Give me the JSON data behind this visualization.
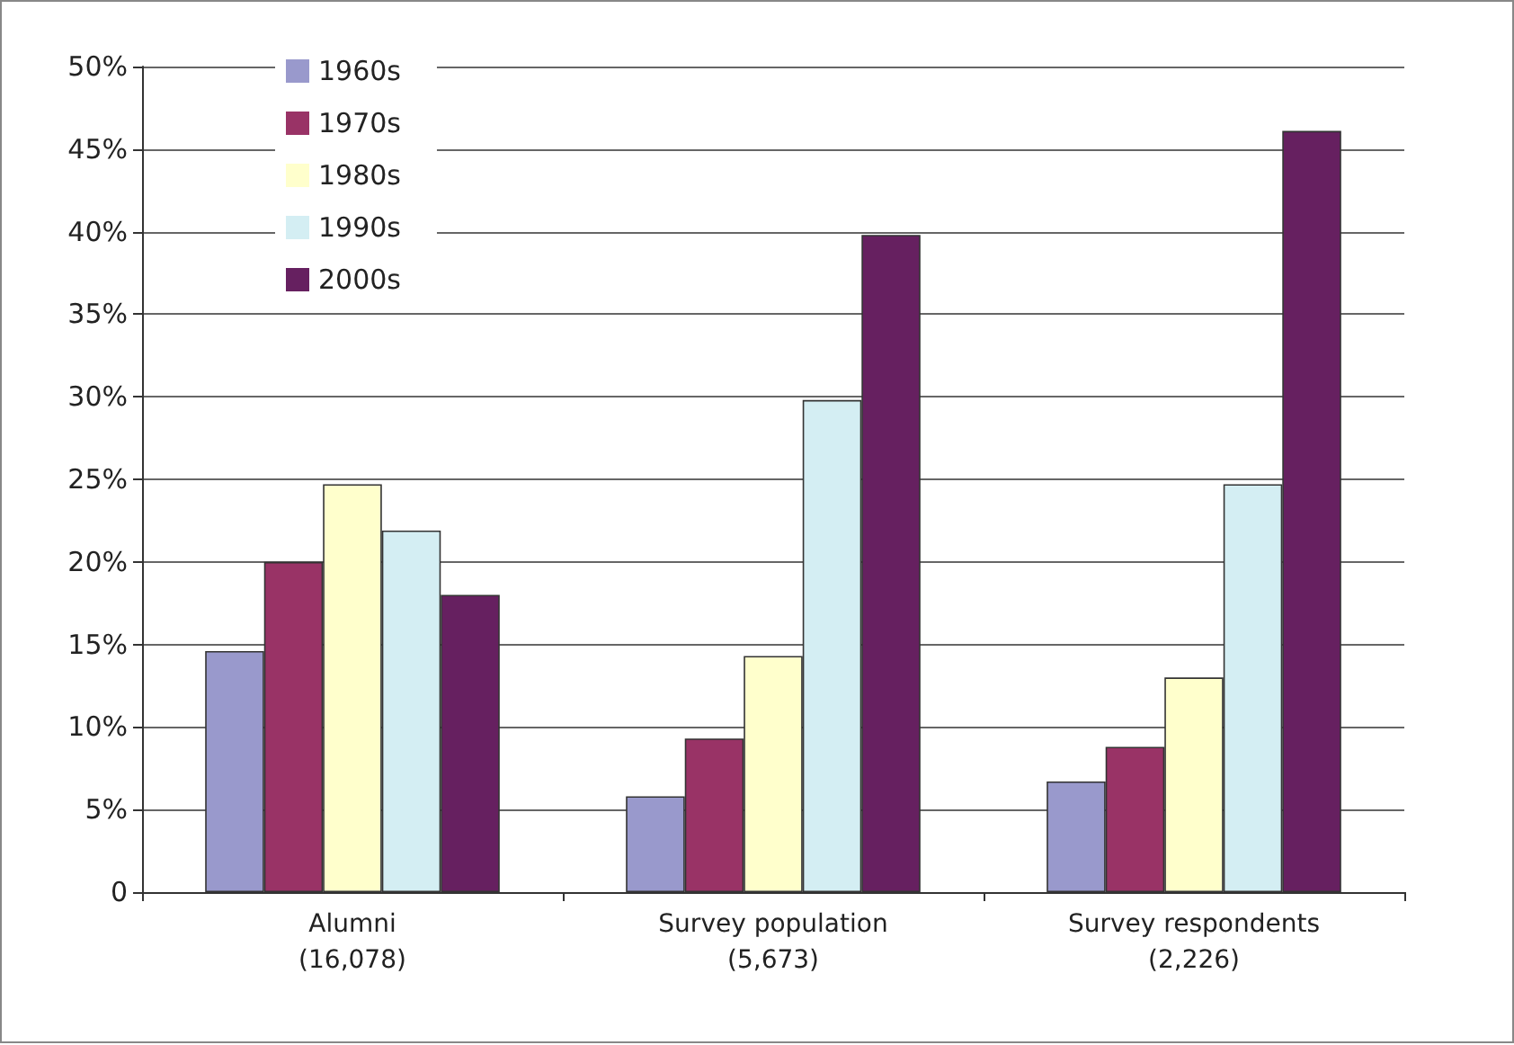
{
  "chart_data": {
    "type": "bar",
    "categories": [
      "Alumni\n(16,078)",
      "Survey population\n(5,673)",
      "Survey respondents\n(2,226)"
    ],
    "series": [
      {
        "name": "1960s",
        "color": "#9999cc",
        "values": [
          14.6,
          5.8,
          6.7
        ]
      },
      {
        "name": "1970s",
        "color": "#993366",
        "values": [
          20.0,
          9.3,
          8.8
        ]
      },
      {
        "name": "1980s",
        "color": "#ffffcc",
        "values": [
          24.7,
          14.3,
          13.0
        ]
      },
      {
        "name": "1990s",
        "color": "#d4eef3",
        "values": [
          21.9,
          29.8,
          24.7
        ]
      },
      {
        "name": "2000s",
        "color": "#662060",
        "values": [
          18.0,
          39.8,
          46.1
        ]
      }
    ],
    "ylim": [
      0,
      50
    ],
    "yticks": [
      0,
      {
        "value": 5,
        "label": "5%"
      },
      {
        "value": 10,
        "label": "10%"
      },
      {
        "value": 15,
        "label": "15%"
      },
      {
        "value": 20,
        "label": "20%"
      },
      {
        "value": 25,
        "label": "25%"
      },
      {
        "value": 30,
        "label": "30%"
      },
      {
        "value": 35,
        "label": "35%"
      },
      {
        "value": 40,
        "label": "40%"
      },
      {
        "value": 45,
        "label": "45%"
      },
      {
        "value": 50,
        "label": "50%"
      }
    ],
    "grid": "y",
    "legend": "top left"
  }
}
